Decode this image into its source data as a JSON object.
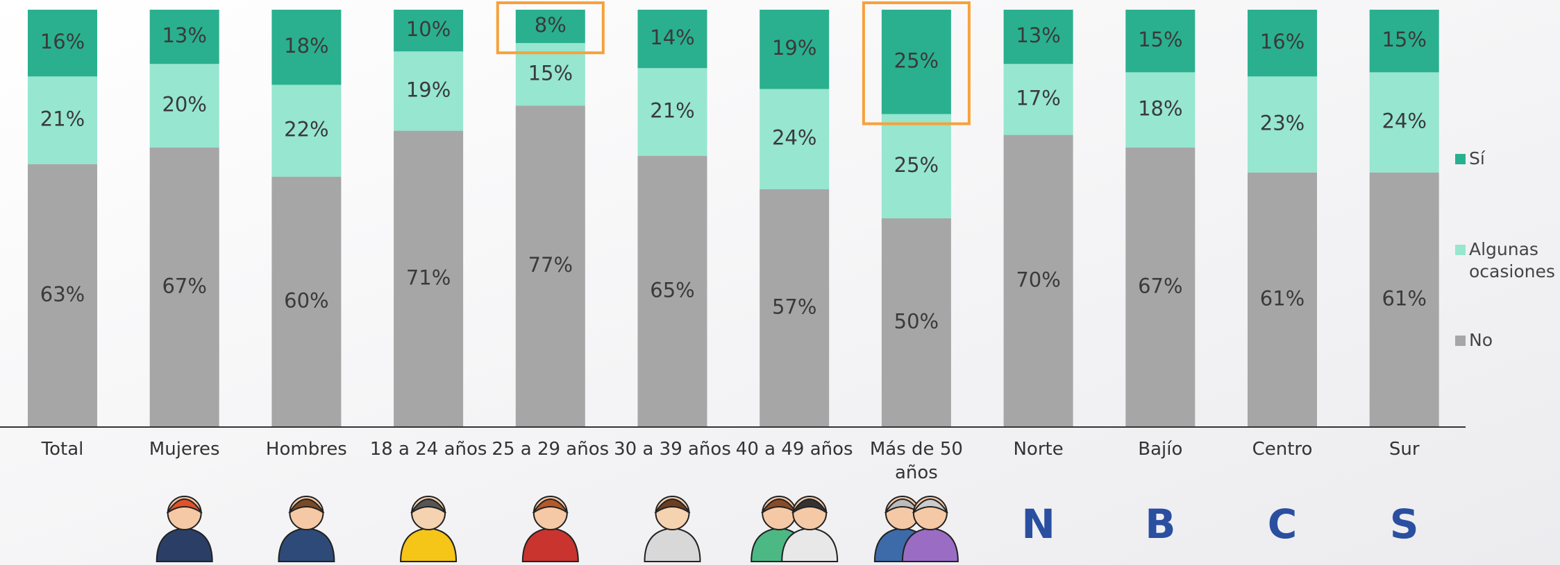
{
  "chart_data": {
    "type": "stacked_bar",
    "categories": [
      "Total",
      "Mujeres",
      "Hombres",
      "18 a 24 años",
      "25 a 29 años",
      "30 a 39 años",
      "40 a 49 años",
      "Más de 50 años",
      "Norte",
      "Bajío",
      "Centro",
      "Sur"
    ],
    "series": [
      {
        "name": "No",
        "color": "#a6a6a6",
        "values": [
          63,
          67,
          60,
          71,
          77,
          65,
          57,
          50,
          70,
          67,
          61,
          61
        ],
        "value_labels": [
          "63%",
          "67%",
          "60%",
          "71%",
          "77%",
          "65%",
          "57%",
          "50%",
          "70%",
          "67%",
          "61%",
          "61%"
        ]
      },
      {
        "name": "Algunas ocasiones",
        "color": "#96e6d0",
        "values": [
          21,
          20,
          22,
          19,
          15,
          21,
          24,
          25,
          17,
          18,
          23,
          24
        ],
        "value_labels": [
          "21%",
          "20%",
          "22%",
          "19%",
          "15%",
          "21%",
          "24%",
          "25%",
          "17%",
          "18%",
          "23%",
          "24%"
        ]
      },
      {
        "name": "Sí",
        "color": "#2ab08f",
        "values": [
          16,
          13,
          18,
          10,
          8,
          14,
          19,
          25,
          13,
          15,
          16,
          15
        ],
        "value_labels": [
          "16%",
          "13%",
          "18%",
          "10%",
          "8%",
          "14%",
          "19%",
          "25%",
          "13%",
          "15%",
          "16%",
          "15%"
        ]
      }
    ],
    "highlight_color": "#f7a13a",
    "highlighted_categories": [
      4,
      7
    ],
    "region_letters": [
      "N",
      "B",
      "C",
      "S"
    ],
    "region_letter_color": "#2a4fa0"
  }
}
